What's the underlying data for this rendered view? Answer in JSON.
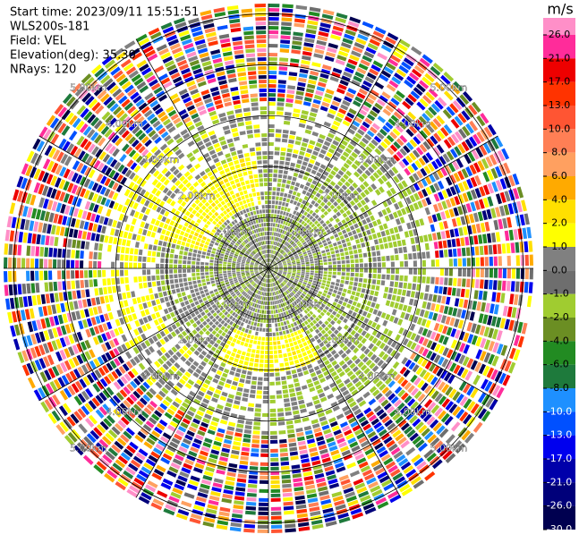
{
  "chart_data": {
    "type": "ppi",
    "header": [
      "Start time: 2023/09/11 15:51:51",
      "WLS200s-181",
      "Field: VEL",
      "Elevation(deg): 35.30",
      "NRays: 120"
    ],
    "colorbar_unit": "m/s",
    "colorbar_ticks": [
      {
        "value": 26,
        "label": "26.0"
      },
      {
        "value": 21,
        "label": "21.0"
      },
      {
        "value": 17,
        "label": "17.0"
      },
      {
        "value": 13,
        "label": "13.0"
      },
      {
        "value": 10,
        "label": "10.0"
      },
      {
        "value": 8,
        "label": "8.0"
      },
      {
        "value": 6,
        "label": "6.0"
      },
      {
        "value": 4,
        "label": "4.0"
      },
      {
        "value": 2,
        "label": "2.0"
      },
      {
        "value": 1,
        "label": "1.0"
      },
      {
        "value": 0,
        "label": "0.0"
      },
      {
        "value": -1,
        "label": "-1.0"
      },
      {
        "value": -2,
        "label": "-2.0"
      },
      {
        "value": -4,
        "label": "-4.0"
      },
      {
        "value": -6,
        "label": "-6.0"
      },
      {
        "value": -8,
        "label": "-8.0"
      },
      {
        "value": -10,
        "label": "-10.0"
      },
      {
        "value": -13,
        "label": "-13.0"
      },
      {
        "value": -17,
        "label": "-17.0"
      },
      {
        "value": -21,
        "label": "-21.0"
      },
      {
        "value": -26,
        "label": "-26.0"
      },
      {
        "value": -30,
        "label": "-30.0"
      }
    ],
    "colors": [
      "#ff8fc8",
      "#ff2c9a",
      "#ee0000",
      "#ff3300",
      "#ff5533",
      "#ff7f55",
      "#ffa060",
      "#ffaa00",
      "#ffe000",
      "#ffff00",
      "#808080",
      "#6e6e6e",
      "#a0cc30",
      "#6b8e23",
      "#228b22",
      "#1e7a3c",
      "#1e90ff",
      "#0050ff",
      "#0000ee",
      "#0000aa",
      "#00007a",
      "#000050"
    ],
    "range_rings": [
      {
        "value": 1,
        "label": "1.00km"
      },
      {
        "value": 2,
        "label": "2.00km"
      },
      {
        "value": 3,
        "label": "3.00km"
      },
      {
        "value": 4,
        "label": "4.00km"
      },
      {
        "value": 5,
        "label": "5.00km"
      }
    ],
    "max_range": 5.2,
    "nrays": 120
  }
}
